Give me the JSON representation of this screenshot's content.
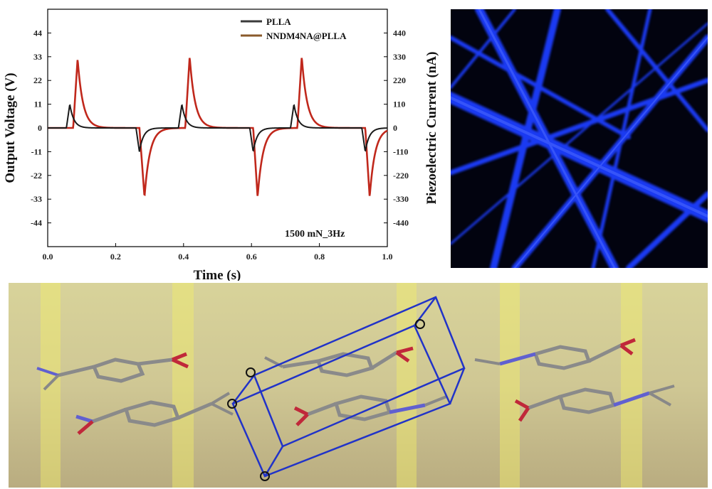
{
  "chart_data": {
    "type": "line",
    "xlabel": "Time (s)",
    "ylabel": "Output Voltage (V)",
    "y2label": "Piezoelectric Current (nA)",
    "xlim": [
      0,
      1.0
    ],
    "ylim": [
      -55,
      55
    ],
    "y2lim": [
      -550,
      550
    ],
    "x_ticks": [
      "0.0",
      "0.2",
      "0.4",
      "0.6",
      "0.8",
      "1.0"
    ],
    "y_ticks": [
      "44",
      "33",
      "22",
      "11",
      "0",
      "-11",
      "-22",
      "-33",
      "-44"
    ],
    "y2_ticks": [
      "440",
      "330",
      "220",
      "110",
      "0",
      "-110",
      "-220",
      "-330",
      "-440"
    ],
    "annotation": "1500 mN_3Hz",
    "legend_position": "top-right",
    "series": [
      {
        "name": "PLLA",
        "color": "#1a1a1a",
        "pulses": [
          {
            "t_rise": 0.055,
            "t_peak": 0.065,
            "peak": 11,
            "t_neg": 0.26,
            "t_trough": 0.27,
            "trough": -11
          },
          {
            "t_rise": 0.385,
            "t_peak": 0.395,
            "peak": 11,
            "t_neg": 0.595,
            "t_trough": 0.605,
            "trough": -11
          },
          {
            "t_rise": 0.715,
            "t_peak": 0.725,
            "peak": 11,
            "t_neg": 0.925,
            "t_trough": 0.935,
            "trough": -11
          }
        ]
      },
      {
        "name": "NNDM4NA@PLLA",
        "color": "#c0281c",
        "pulses": [
          {
            "t_rise": 0.075,
            "t_peak": 0.088,
            "peak": 32,
            "t_neg": 0.27,
            "t_trough": 0.285,
            "trough": -32
          },
          {
            "t_rise": 0.405,
            "t_peak": 0.418,
            "peak": 33,
            "t_neg": 0.605,
            "t_trough": 0.618,
            "trough": -32
          },
          {
            "t_rise": 0.735,
            "t_peak": 0.748,
            "peak": 33,
            "t_neg": 0.935,
            "t_trough": 0.948,
            "trough": -32
          }
        ]
      }
    ]
  },
  "legend_line_color": "#8a5a2b"
}
